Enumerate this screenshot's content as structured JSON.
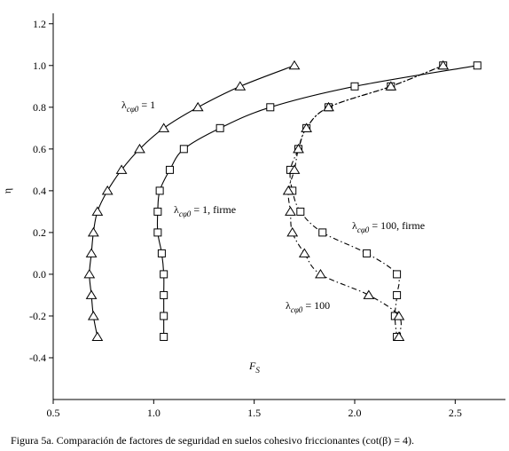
{
  "chart_data": {
    "type": "line",
    "xlabel": {
      "text": "F",
      "subscript": "S"
    },
    "ylabel": "η",
    "caption": "Figura 5a. Comparación de factores de seguridad en suelos cohesivo friccionantes (cot(β) = 4).",
    "xlim": [
      0.5,
      2.75
    ],
    "ylim": [
      -0.6,
      1.25
    ],
    "xticks": [
      0.5,
      {
        "value": 1,
        "label": "1.0"
      },
      1.5,
      {
        "value": 2,
        "label": "2.0"
      },
      2.5
    ],
    "yticks": [
      -0.4,
      -0.2,
      {
        "value": 0,
        "label": "0.0"
      },
      0.2,
      0.4,
      0.6,
      0.8,
      {
        "value": 1,
        "label": "1.0"
      },
      1.2
    ],
    "series": [
      {
        "label": {
          "symbol": "λ",
          "subscript": "cφ0",
          "text": " = 1"
        },
        "marker": "triangle",
        "dash": "solid",
        "color": "#000000",
        "x": [
          0.72,
          0.7,
          0.69,
          0.68,
          0.69,
          0.7,
          0.72,
          0.77,
          0.84,
          0.93,
          1.05,
          1.22,
          1.43,
          1.7
        ],
        "values": [
          -0.3,
          -0.2,
          -0.1,
          0.0,
          0.1,
          0.2,
          0.3,
          0.4,
          0.5,
          0.6,
          0.7,
          0.8,
          0.9,
          1.0
        ]
      },
      {
        "label": {
          "symbol": "λ",
          "subscript": "cφ0",
          "text": " = 1, firme"
        },
        "marker": "square",
        "dash": "solid",
        "color": "#000000",
        "x": [
          1.05,
          1.05,
          1.05,
          1.05,
          1.04,
          1.02,
          1.02,
          1.03,
          1.08,
          1.15,
          1.33,
          1.58,
          2.0,
          2.61
        ],
        "values": [
          -0.3,
          -0.2,
          -0.1,
          0.0,
          0.1,
          0.2,
          0.3,
          0.4,
          0.5,
          0.6,
          0.7,
          0.8,
          0.9,
          1.0
        ]
      },
      {
        "label": {
          "symbol": "λ",
          "subscript": "cφ0",
          "text": " = 100, firme"
        },
        "marker": "square",
        "dash": "dashdot",
        "color": "#000000",
        "x": [
          2.21,
          2.2,
          2.21,
          2.21,
          2.06,
          1.84,
          1.73,
          1.69,
          1.68,
          1.72,
          1.76,
          1.87,
          2.18,
          2.44
        ],
        "values": [
          -0.3,
          -0.2,
          -0.1,
          0.0,
          0.1,
          0.2,
          0.3,
          0.4,
          0.5,
          0.6,
          0.7,
          0.8,
          0.9,
          1.0
        ]
      },
      {
        "label": {
          "symbol": "λ",
          "subscript": "cφ0",
          "text": " = 100"
        },
        "marker": "triangle",
        "dash": "dashdot",
        "color": "#000000",
        "x": [
          2.22,
          2.22,
          2.07,
          1.83,
          1.75,
          1.69,
          1.68,
          1.67,
          1.7,
          1.72,
          1.76,
          1.87,
          2.18,
          2.44
        ],
        "values": [
          -0.3,
          -0.2,
          -0.1,
          0.0,
          0.1,
          0.2,
          0.3,
          0.4,
          0.5,
          0.6,
          0.7,
          0.8,
          0.9,
          1.0
        ]
      }
    ]
  }
}
